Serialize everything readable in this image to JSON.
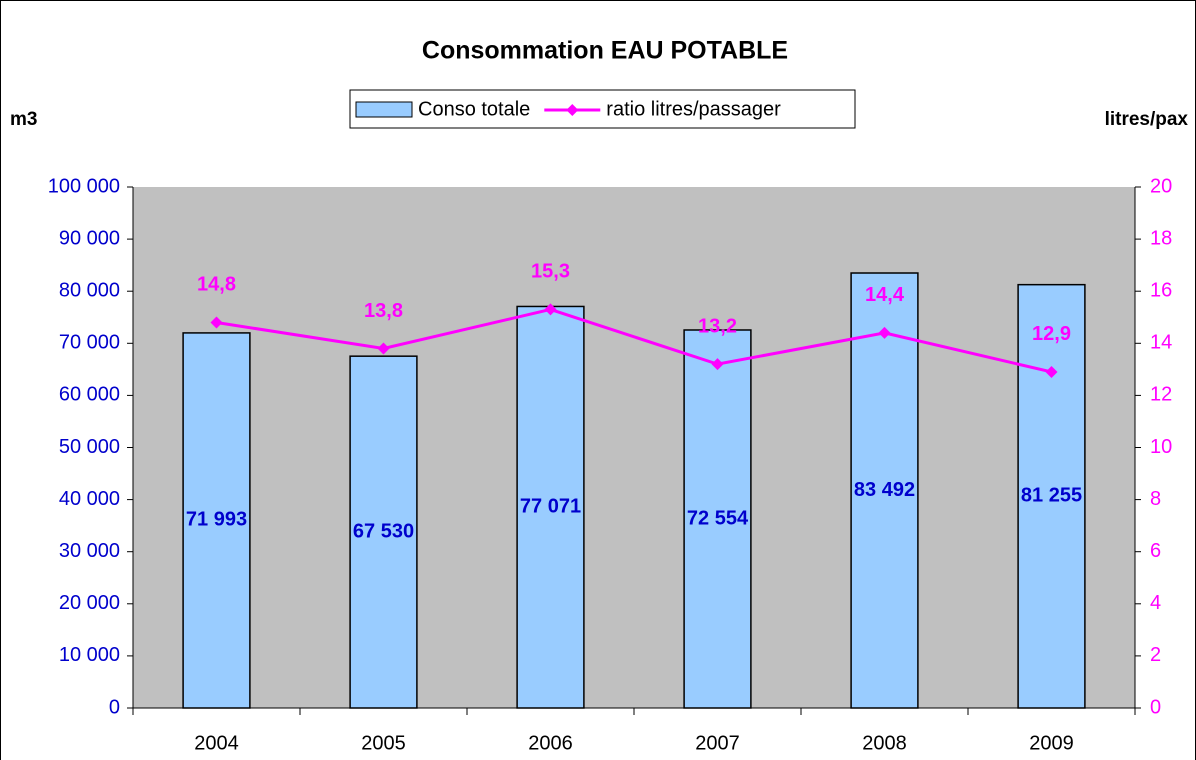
{
  "chart_data": {
    "type": "bar",
    "title": "Consommation EAU POTABLE",
    "y_label": "m3",
    "y2_label": "litres/pax",
    "categories": [
      "2004",
      "2005",
      "2006",
      "2007",
      "2008",
      "2009"
    ],
    "series": [
      {
        "name": "Conso totale",
        "type": "bar",
        "color": "#99ccff",
        "values": [
          71993,
          67530,
          77071,
          72554,
          83492,
          81255
        ],
        "value_labels": [
          "71 993",
          "67 530",
          "77 071",
          "72 554",
          "83 492",
          "81 255"
        ]
      },
      {
        "name": "ratio litres/passager",
        "type": "line",
        "axis": "y2",
        "color": "#ff00ff",
        "values": [
          14.8,
          13.8,
          15.3,
          13.2,
          14.4,
          12.9
        ],
        "value_labels": [
          "14,8",
          "13,8",
          "15,3",
          "13,2",
          "14,4",
          "12,9"
        ]
      }
    ],
    "ylim": [
      0,
      100000
    ],
    "yticks": [
      0,
      {
        "value": 10000,
        "label": "10 000"
      },
      {
        "value": 20000,
        "label": "20 000"
      },
      {
        "value": 30000,
        "label": "30 000"
      },
      {
        "value": 40000,
        "label": "40 000"
      },
      {
        "value": 50000,
        "label": "50 000"
      },
      {
        "value": 60000,
        "label": "60 000"
      },
      {
        "value": 70000,
        "label": "70 000"
      },
      {
        "value": 80000,
        "label": "80 000"
      },
      {
        "value": 90000,
        "label": "90 000"
      },
      {
        "value": 100000,
        "label": "100 000"
      }
    ],
    "y2lim": [
      0,
      20
    ],
    "y2ticks": [
      0,
      2,
      4,
      6,
      8,
      10,
      12,
      14,
      16,
      18,
      20
    ],
    "legend": "top"
  }
}
